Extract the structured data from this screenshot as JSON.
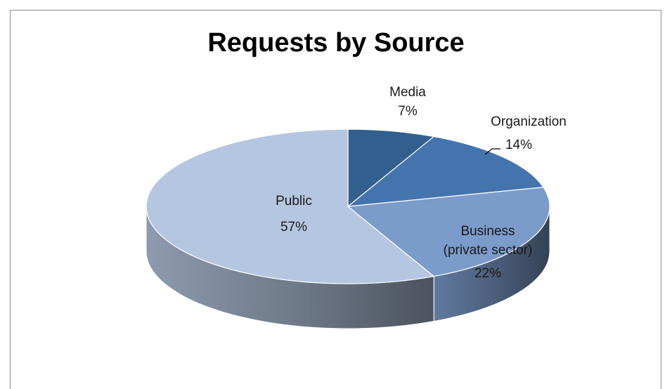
{
  "chart_data": {
    "type": "pie",
    "title": "Requests by Source",
    "slices": [
      {
        "name": "Media",
        "value": 7,
        "label": "7%",
        "color": "#335f8f"
      },
      {
        "name": "Organization",
        "value": 14,
        "label": "14%",
        "color": "#4474ad"
      },
      {
        "name": "Business (private sector)",
        "value": 22,
        "label": "22%",
        "color": "#7b9bca"
      },
      {
        "name": "Public",
        "value": 57,
        "label": "57%",
        "color": "#b5c6e0"
      }
    ],
    "three_d": true,
    "legend": "none",
    "data_labels": "category and percent"
  },
  "labels": {
    "media_name": "Media",
    "media_pct": "7%",
    "org_name": "Organization",
    "org_pct": "14%",
    "business_name_1": "Business",
    "business_name_2": "(private sector)",
    "business_pct": "22%",
    "public_name": "Public",
    "public_pct": "57%"
  }
}
